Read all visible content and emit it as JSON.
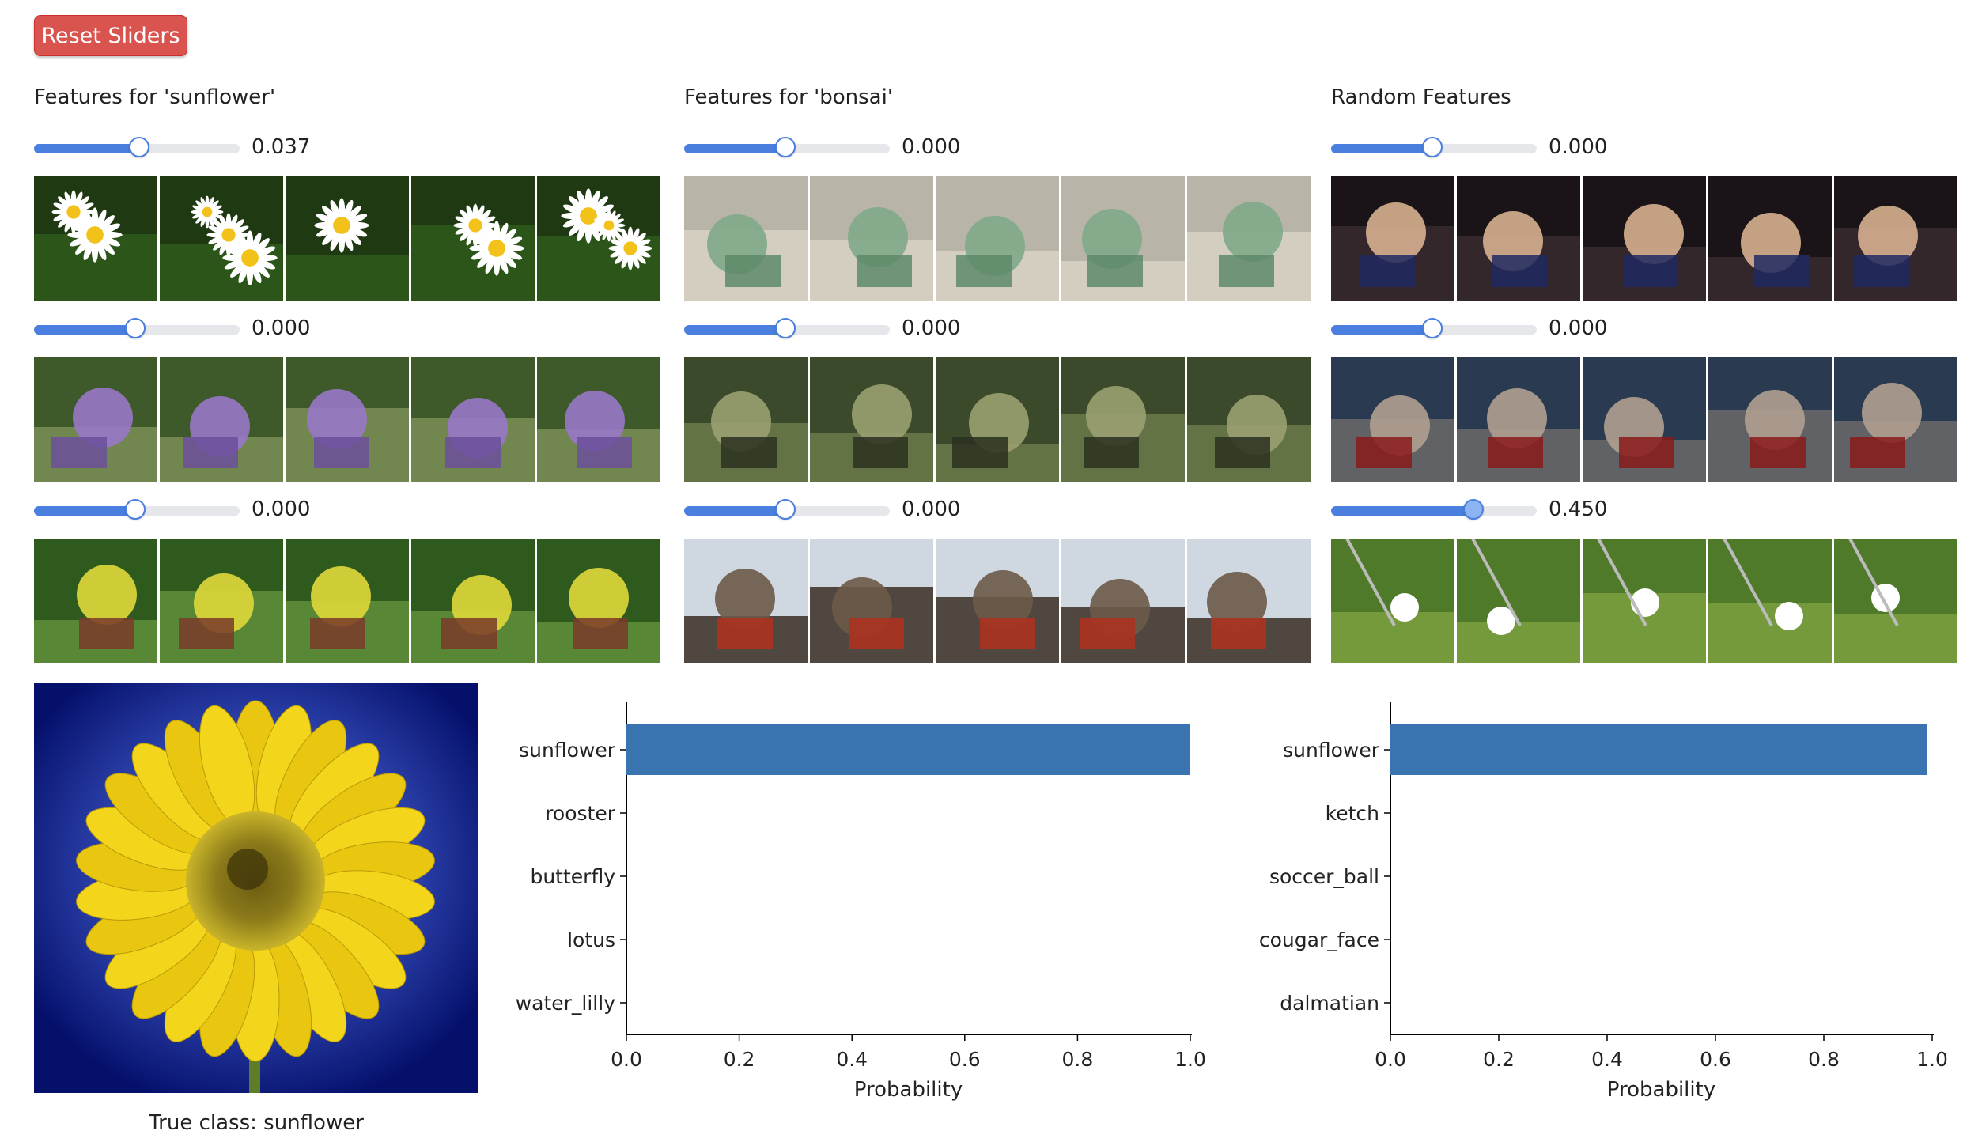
{
  "controls": {
    "reset_label": "Reset Sliders"
  },
  "columns": [
    {
      "title": "Features for 'sunflower'",
      "rows": [
        {
          "value": 0.037,
          "value_label": "0.037",
          "slider_fraction": 0.52,
          "thumbnails": [
            "daisy-photo",
            "daisy-photo",
            "daisy-photo",
            "daisy-photo",
            "daisy-photo"
          ]
        },
        {
          "value": 0.0,
          "value_label": "0.000",
          "slider_fraction": 0.5,
          "thumbnails": [
            "thistle-photo",
            "thistle-photo",
            "thistle-photo",
            "thistle-photo",
            "thistle-photo"
          ]
        },
        {
          "value": 0.0,
          "value_label": "0.000",
          "slider_fraction": 0.5,
          "thumbnails": [
            "ladyslipper-orchid-photo",
            "ladyslipper-orchid-photo",
            "ladyslipper-orchid-photo",
            "ladyslipper-orchid-photo",
            "ladyslipper-orchid-photo"
          ]
        }
      ]
    },
    {
      "title": "Features for 'bonsai'",
      "rows": [
        {
          "value": 0.0,
          "value_label": "0.000",
          "slider_fraction": 0.5,
          "thumbnails": [
            "succulent-photo",
            "succulent-photo",
            "succulent-photo",
            "succulent-photo",
            "succulent-photo"
          ]
        },
        {
          "value": 0.0,
          "value_label": "0.000",
          "slider_fraction": 0.5,
          "thumbnails": [
            "miniature-model-photo",
            "miniature-model-photo",
            "miniature-model-photo",
            "miniature-model-photo",
            "miniature-model-photo"
          ]
        },
        {
          "value": 0.0,
          "value_label": "0.000",
          "slider_fraction": 0.5,
          "thumbnails": [
            "pagoda-photo",
            "pagoda-photo",
            "pagoda-photo",
            "pagoda-photo",
            "pagoda-photo"
          ]
        }
      ]
    },
    {
      "title": "Random Features",
      "rows": [
        {
          "value": 0.0,
          "value_label": "0.000",
          "slider_fraction": 0.5,
          "thumbnails": [
            "people-photo",
            "people-photo",
            "people-photo",
            "people-photo",
            "people-photo"
          ]
        },
        {
          "value": 0.0,
          "value_label": "0.000",
          "slider_fraction": 0.5,
          "thumbnails": [
            "misc-photo",
            "misc-photo",
            "misc-photo",
            "misc-photo",
            "misc-photo"
          ]
        },
        {
          "value": 0.45,
          "value_label": "0.450",
          "slider_fraction": 0.7,
          "active": true,
          "thumbnails": [
            "golf-photo",
            "golf-photo",
            "golf-photo",
            "golf-photo",
            "golf-photo"
          ]
        }
      ]
    }
  ],
  "true_image": {
    "caption": "True class: sunflower",
    "icon": "sunflower-photo"
  },
  "colors": {
    "bar": "#3a74b0",
    "slider": "#4a7fe0",
    "reset": "#d9534f"
  },
  "chart_data": [
    {
      "type": "bar",
      "orientation": "horizontal",
      "categories": [
        "sunflower",
        "rooster",
        "butterfly",
        "lotus",
        "water_lilly"
      ],
      "values": [
        1.0,
        0.0,
        0.0,
        0.0,
        0.0
      ],
      "xlabel": "Probability",
      "xlim": [
        0.0,
        1.0
      ],
      "xticks": [
        "0.0",
        "0.2",
        "0.4",
        "0.6",
        "0.8",
        "1.0"
      ]
    },
    {
      "type": "bar",
      "orientation": "horizontal",
      "categories": [
        "sunflower",
        "ketch",
        "soccer_ball",
        "cougar_face",
        "dalmatian"
      ],
      "values": [
        0.99,
        0.0,
        0.0,
        0.0,
        0.0
      ],
      "xlabel": "Probability",
      "xlim": [
        0.0,
        1.0
      ],
      "xticks": [
        "0.0",
        "0.2",
        "0.4",
        "0.6",
        "0.8",
        "1.0"
      ]
    }
  ]
}
